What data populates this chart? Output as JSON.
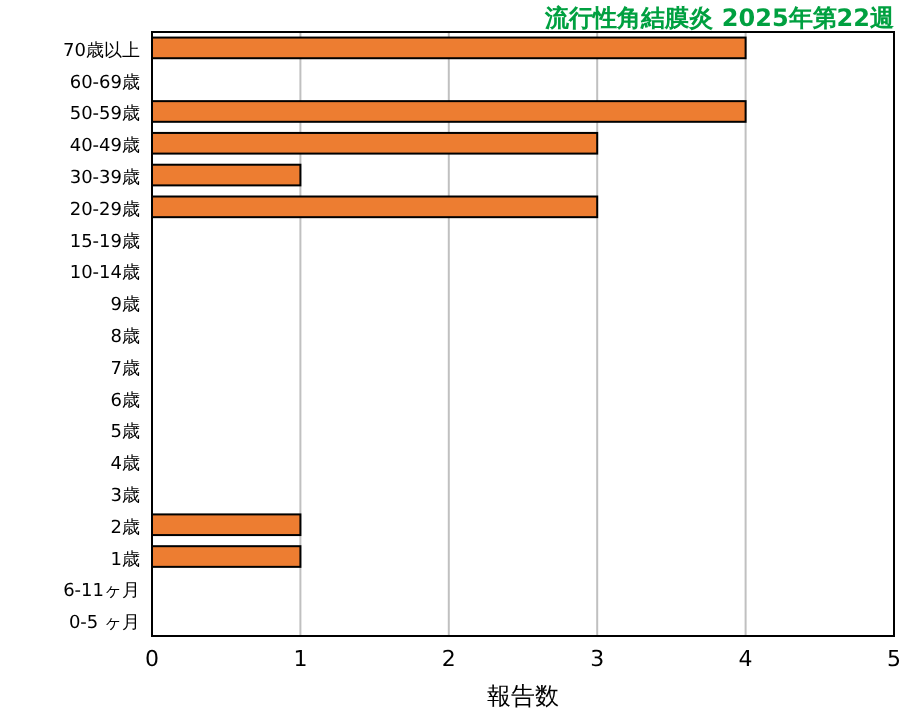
{
  "chart_data": {
    "type": "bar",
    "orientation": "horizontal",
    "title": "流行性角結膜炎 2025年第22週",
    "xlabel": "報告数",
    "categories": [
      "70歳以上",
      "60-69歳",
      "50-59歳",
      "40-49歳",
      "30-39歳",
      "20-29歳",
      "15-19歳",
      "10-14歳",
      "9歳",
      "8歳",
      "7歳",
      "6歳",
      "5歳",
      "4歳",
      "3歳",
      "2歳",
      "1歳",
      "6-11ヶ月",
      "0-5 ヶ月"
    ],
    "values": [
      4,
      0,
      4,
      3,
      1,
      3,
      0,
      0,
      0,
      0,
      0,
      0,
      0,
      0,
      0,
      1,
      1,
      0,
      0
    ],
    "color": "#ed7d31",
    "xlim": [
      0,
      5
    ],
    "xticks": [
      0,
      1,
      2,
      3,
      4,
      5
    ],
    "grid": "x"
  }
}
